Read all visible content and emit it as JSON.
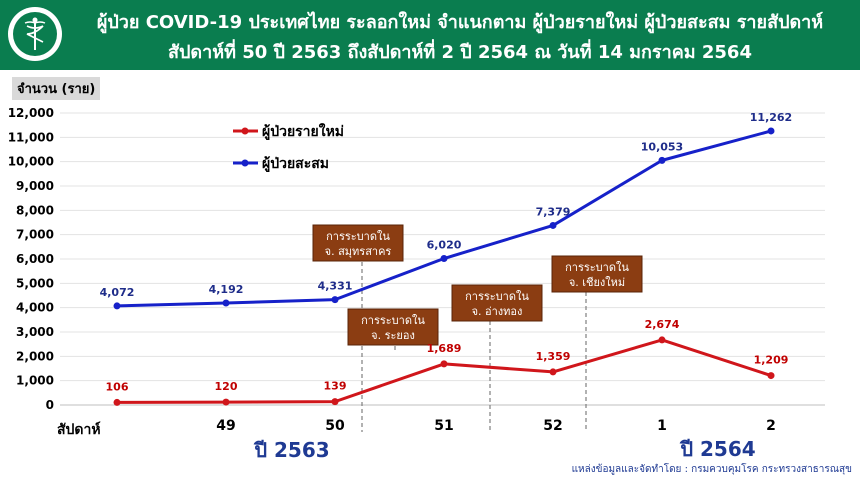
{
  "header": {
    "title_line1": "ผู้ป่วย COVID-19 ประเทศไทย ระลอกใหม่ จำแนกตาม ผู้ป่วยรายใหม่ ผู้ป่วยสะสม รายสัปดาห์",
    "title_line2": "สัปดาห์ที่ 50 ปี 2563 ถึงสัปดาห์ที่ 2 ปี 2564 ณ วันที่ 14 มกราคม 2564"
  },
  "source": "แหล่งข้อมูลและจัดทำโดย : กรมควบคุมโรค กระทรวงสาธารณสุข",
  "chart_data": {
    "type": "line",
    "ylabel": "จำนวน (ราย)",
    "xlabel": "สัปดาห์",
    "ylim": [
      0,
      12000
    ],
    "yticks": [
      "0",
      "1,000",
      "2,000",
      "3,000",
      "4,000",
      "5,000",
      "6,000",
      "7,000",
      "8,000",
      "9,000",
      "10,000",
      "11,000",
      "12,000"
    ],
    "categories": [
      "",
      "49",
      "50",
      "51",
      "52",
      "1",
      "2"
    ],
    "years": [
      "ปี 2563",
      "ปี 2564"
    ],
    "grid": true,
    "legend_position": "top-left",
    "series": [
      {
        "name": "ผู้ป่วยรายใหม่",
        "color": "#d0161b",
        "values": [
          106,
          120,
          139,
          1689,
          1359,
          2674,
          1209
        ],
        "labels": [
          "106",
          "120",
          "139",
          "1,689",
          "1,359",
          "2,674",
          "1,209"
        ]
      },
      {
        "name": "ผู้ป่วยสะสม",
        "color": "#1621c9",
        "values": [
          4072,
          4192,
          4331,
          6020,
          7379,
          10053,
          11262
        ],
        "labels": [
          "4,072",
          "4,192",
          "4,331",
          "6,020",
          "7,379",
          "10,053",
          "11,262"
        ]
      }
    ],
    "annotations": [
      {
        "line1": "การระบาดใน",
        "line2": "จ. สมุทรสาคร",
        "x": 2.25
      },
      {
        "line1": "การระบาดใน",
        "line2": "จ. ระยอง",
        "x": 2.75
      },
      {
        "line1": "การระบาดใน",
        "line2": "จ. อ่างทอง",
        "x": 4.0
      },
      {
        "line1": "การระบาดใน",
        "line2": "จ. เชียงใหม่",
        "x": 5.0
      }
    ]
  }
}
